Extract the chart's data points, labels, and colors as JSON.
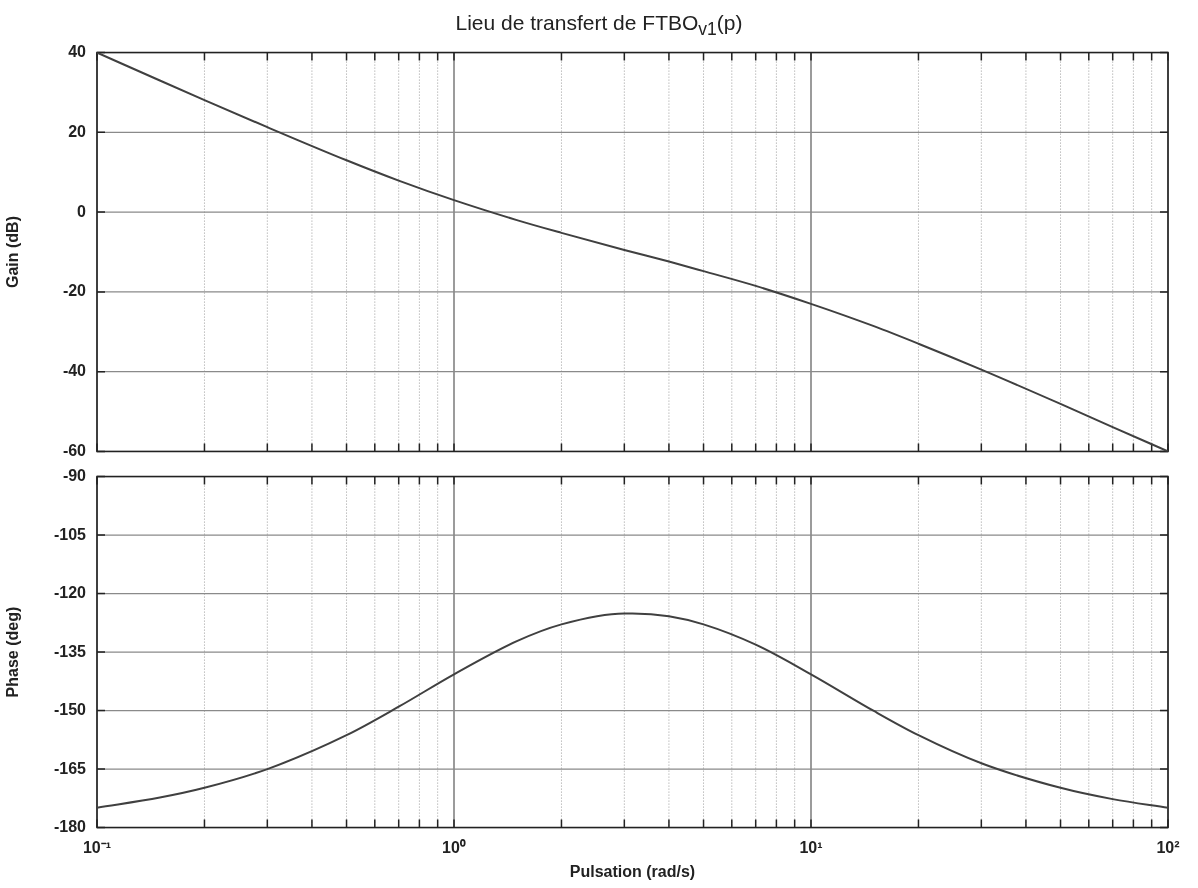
{
  "chart_data": [
    {
      "type": "line",
      "title": "Lieu de transfert de FTBO$_{v1}$(p)",
      "ylabel": "Gain (dB)",
      "log": "x",
      "grid": true,
      "tick_labels": "y",
      "marker": "none",
      "line_style": "solid",
      "xlim": [
        0.1,
        100
      ],
      "xticks": [
        {
          "value": 0.1,
          "label": null
        },
        {
          "value": 0.2,
          "label": null
        },
        {
          "value": 0.3,
          "label": null
        },
        {
          "value": 0.4,
          "label": null
        },
        {
          "value": 0.5,
          "label": null
        },
        {
          "value": 0.6,
          "label": null
        },
        {
          "value": 0.7,
          "label": null
        },
        {
          "value": 0.8,
          "label": null
        },
        {
          "value": 0.9,
          "label": null
        },
        {
          "value": 1,
          "label": null
        },
        {
          "value": 2,
          "label": null
        },
        {
          "value": 3,
          "label": null
        },
        {
          "value": 4,
          "label": null
        },
        {
          "value": 5,
          "label": null
        },
        {
          "value": 6,
          "label": null
        },
        {
          "value": 7,
          "label": null
        },
        {
          "value": 8,
          "label": null
        },
        {
          "value": 9,
          "label": null
        },
        {
          "value": 10,
          "label": null
        },
        {
          "value": 20,
          "label": null
        },
        {
          "value": 30,
          "label": null
        },
        {
          "value": 40,
          "label": null
        },
        {
          "value": 50,
          "label": null
        },
        {
          "value": 60,
          "label": null
        },
        {
          "value": 70,
          "label": null
        },
        {
          "value": 80,
          "label": null
        },
        {
          "value": 90,
          "label": null
        },
        {
          "value": 100,
          "label": null
        }
      ],
      "ylim": [
        -60,
        40
      ],
      "yticks": [
        -60,
        -40,
        -20,
        0,
        20,
        40
      ],
      "series": [
        {
          "color": "#404040",
          "x": [
            0.1,
            0.15,
            0.2,
            0.3,
            0.5,
            0.7,
            1,
            1.5,
            2,
            3,
            4,
            5,
            7,
            10,
            15,
            20,
            30,
            50,
            70,
            100
          ],
          "values": [
            40.0,
            33.0,
            28.1,
            21.3,
            13.0,
            7.9,
            3.0,
            -2.0,
            -5.2,
            -9.5,
            -12.4,
            -14.8,
            -18.5,
            -23.0,
            -28.6,
            -33.0,
            -39.5,
            -48.1,
            -53.9,
            -60.0
          ]
        }
      ]
    },
    {
      "type": "line",
      "xlabel": "Pulsation (rad/s)",
      "ylabel": "Phase (deg)",
      "log": "x",
      "grid": true,
      "marker": "none",
      "line_style": "solid",
      "xlim": [
        0.1,
        100
      ],
      "xticks": [
        {
          "value": 0.1,
          "label": "10⁻¹"
        },
        {
          "value": 0.2,
          "label": null
        },
        {
          "value": 0.3,
          "label": null
        },
        {
          "value": 0.4,
          "label": null
        },
        {
          "value": 0.5,
          "label": null
        },
        {
          "value": 0.6,
          "label": null
        },
        {
          "value": 0.7,
          "label": null
        },
        {
          "value": 0.8,
          "label": null
        },
        {
          "value": 0.9,
          "label": null
        },
        {
          "value": 1,
          "label": "10⁰"
        },
        {
          "value": 2,
          "label": null
        },
        {
          "value": 3,
          "label": null
        },
        {
          "value": 4,
          "label": null
        },
        {
          "value": 5,
          "label": null
        },
        {
          "value": 6,
          "label": null
        },
        {
          "value": 7,
          "label": null
        },
        {
          "value": 8,
          "label": null
        },
        {
          "value": 9,
          "label": null
        },
        {
          "value": 10,
          "label": "10¹"
        },
        {
          "value": 20,
          "label": null
        },
        {
          "value": 30,
          "label": null
        },
        {
          "value": 40,
          "label": null
        },
        {
          "value": 50,
          "label": null
        },
        {
          "value": 60,
          "label": null
        },
        {
          "value": 70,
          "label": null
        },
        {
          "value": 80,
          "label": null
        },
        {
          "value": 90,
          "label": null
        },
        {
          "value": 100,
          "label": "10²"
        }
      ],
      "ylim": [
        -180,
        -90
      ],
      "yticks": [
        -180,
        -165,
        -150,
        -135,
        -120,
        -105,
        -90
      ],
      "series": [
        {
          "color": "#404040",
          "x": [
            0.1,
            0.15,
            0.2,
            0.3,
            0.5,
            0.7,
            1,
            1.5,
            2,
            3,
            3.16,
            4,
            5,
            7,
            10,
            15,
            20,
            30,
            50,
            70,
            100
          ],
          "values": [
            -174.9,
            -172.3,
            -169.8,
            -165.0,
            -156.3,
            -149.0,
            -140.7,
            -132.2,
            -127.9,
            -125.1,
            -125.1,
            -125.8,
            -127.9,
            -133.1,
            -140.7,
            -150.1,
            -156.3,
            -163.5,
            -169.8,
            -172.7,
            -174.9
          ]
        }
      ]
    }
  ]
}
